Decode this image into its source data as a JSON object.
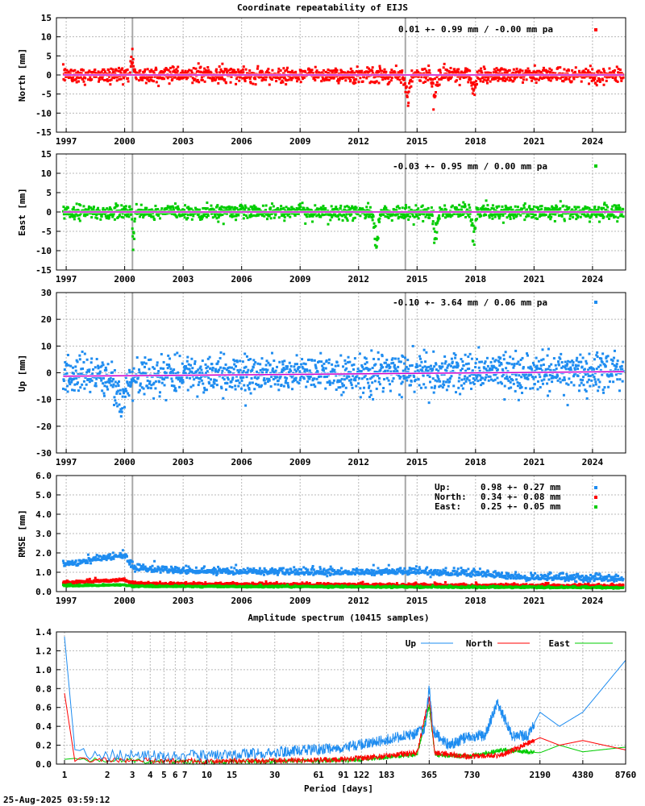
{
  "footer_timestamp": "25-Aug-2025 03:59:12",
  "chart_data": [
    {
      "id": "north",
      "type": "scatter",
      "title": "Coordinate repeatability of EIJS",
      "ylabel": "North [mm]",
      "ylim": [
        -15,
        15
      ],
      "yticks": [
        -15,
        -10,
        -5,
        0,
        5,
        10,
        15
      ],
      "ytick_labels": [
        "-15",
        "-10",
        "-5",
        "0",
        "5",
        "10",
        "15"
      ],
      "xlim": [
        1996.5,
        2025.7
      ],
      "xticks": [
        1997,
        2000,
        2003,
        2006,
        2009,
        2012,
        2015,
        2018,
        2021,
        2024
      ],
      "xtick_labels": [
        "1997",
        "2000",
        "2003",
        "2006",
        "2009",
        "2012",
        "2015",
        "2018",
        "2021",
        "2024"
      ],
      "vlines": [
        2000.4,
        2014.4
      ],
      "color": "#ff0000",
      "trend_color": "#cc00cc",
      "annotation": "0.01 +- 0.99 mm / -0.00 mm pa",
      "noise_sd": 1.0,
      "trend": [
        0.0,
        0.0
      ],
      "events": [
        [
          2000.4,
          5.0,
          0.1
        ],
        [
          2014.5,
          -5.0,
          0.15
        ],
        [
          2015.9,
          -5.5,
          0.15
        ],
        [
          2017.9,
          -4.5,
          0.12
        ]
      ]
    },
    {
      "id": "east",
      "type": "scatter",
      "ylabel": "East [mm]",
      "ylim": [
        -15,
        15
      ],
      "yticks": [
        -15,
        -10,
        -5,
        0,
        5,
        10,
        15
      ],
      "ytick_labels": [
        "-15",
        "-10",
        "-5",
        "0",
        "5",
        "10",
        "15"
      ],
      "xlim": [
        1996.5,
        2025.7
      ],
      "xticks": [
        1997,
        2000,
        2003,
        2006,
        2009,
        2012,
        2015,
        2018,
        2021,
        2024
      ],
      "xtick_labels": [
        "1997",
        "2000",
        "2003",
        "2006",
        "2009",
        "2012",
        "2015",
        "2018",
        "2021",
        "2024"
      ],
      "vlines": [
        2000.4,
        2014.4
      ],
      "color": "#00cc00",
      "trend_color": "#cc00cc",
      "annotation": "-0.03 +- 0.95 mm /  0.00 mm pa",
      "noise_sd": 0.9,
      "trend": [
        0.0,
        0.0
      ],
      "events": [
        [
          2000.45,
          -9.0,
          0.05
        ],
        [
          2012.9,
          -6.5,
          0.15
        ],
        [
          2015.95,
          -6.5,
          0.12
        ],
        [
          2017.9,
          -6.0,
          0.1
        ]
      ]
    },
    {
      "id": "up",
      "type": "scatter",
      "ylabel": "Up [mm]",
      "ylim": [
        -30,
        30
      ],
      "yticks": [
        -30,
        -20,
        -10,
        0,
        10,
        20,
        30
      ],
      "ytick_labels": [
        "-30",
        "-20",
        "-10",
        "0",
        "10",
        "20",
        "30"
      ],
      "xlim": [
        1996.5,
        2025.7
      ],
      "xticks": [
        1997,
        2000,
        2003,
        2006,
        2009,
        2012,
        2015,
        2018,
        2021,
        2024
      ],
      "xtick_labels": [
        "1997",
        "2000",
        "2003",
        "2006",
        "2009",
        "2012",
        "2015",
        "2018",
        "2021",
        "2024"
      ],
      "vlines": [
        2000.4,
        2014.4
      ],
      "color": "#1e8cf0",
      "trend_color": "#cc00cc",
      "annotation": "-0.10 +- 3.64 mm /  0.06 mm pa",
      "noise_sd": 3.6,
      "trend": [
        -1.3,
        0.06
      ],
      "events": [
        [
          1999.8,
          -8.0,
          0.4
        ]
      ]
    },
    {
      "id": "rmse",
      "type": "scatter",
      "ylabel": "RMSE [mm]",
      "ylim": [
        0,
        6
      ],
      "yticks": [
        0,
        1,
        2,
        3,
        4,
        5,
        6
      ],
      "ytick_labels": [
        "0.0",
        "1.0",
        "2.0",
        "3.0",
        "4.0",
        "5.0",
        "6.0"
      ],
      "xlim": [
        1996.5,
        2025.7
      ],
      "xticks": [
        1997,
        2000,
        2003,
        2006,
        2009,
        2012,
        2015,
        2018,
        2021,
        2024
      ],
      "xtick_labels": [
        "1997",
        "2000",
        "2003",
        "2006",
        "2009",
        "2012",
        "2015",
        "2018",
        "2021",
        "2024"
      ],
      "vlines": [
        2000.4,
        2014.4
      ],
      "legend": [
        {
          "name": "Up:",
          "text": "0.98 +- 0.27 mm",
          "color": "#1e8cf0"
        },
        {
          "name": "North:",
          "text": "0.34 +- 0.08 mm",
          "color": "#ff0000"
        },
        {
          "name": "East:",
          "text": "0.25 +- 0.05 mm",
          "color": "#00cc00"
        }
      ],
      "series": [
        {
          "name": "Up",
          "color": "#1e8cf0",
          "levels": [
            [
              1996.8,
              1.4
            ],
            [
              2000.0,
              1.9
            ],
            [
              2000.5,
              1.2
            ],
            [
              2004.0,
              1.05
            ],
            [
              2010.0,
              1.0
            ],
            [
              2014.0,
              1.0
            ],
            [
              2018.0,
              0.95
            ],
            [
              2020.0,
              0.75
            ],
            [
              2025.6,
              0.65
            ]
          ],
          "sd": 0.12
        },
        {
          "name": "North",
          "color": "#ff0000",
          "levels": [
            [
              1996.8,
              0.45
            ],
            [
              2000.0,
              0.6
            ],
            [
              2000.5,
              0.4
            ],
            [
              2010.0,
              0.35
            ],
            [
              2020.0,
              0.3
            ],
            [
              2025.6,
              0.28
            ]
          ],
          "sd": 0.05
        },
        {
          "name": "East",
          "color": "#00cc00",
          "levels": [
            [
              1996.8,
              0.3
            ],
            [
              2000.0,
              0.35
            ],
            [
              2000.5,
              0.27
            ],
            [
              2010.0,
              0.25
            ],
            [
              2020.0,
              0.22
            ],
            [
              2025.6,
              0.2
            ]
          ],
          "sd": 0.03
        }
      ]
    },
    {
      "id": "spectrum",
      "type": "line",
      "title": "Amplitude spectrum (10415 samples)",
      "xlabel": "Period [days]",
      "xscale": "log",
      "xlim": [
        1,
        8760
      ],
      "ylim": [
        0,
        1.4
      ],
      "yticks": [
        0,
        0.2,
        0.4,
        0.6,
        0.8,
        1.0,
        1.2,
        1.4
      ],
      "ytick_labels": [
        "0.0",
        "0.2",
        "0.4",
        "0.6",
        "0.8",
        "1.0",
        "1.2",
        "1.4"
      ],
      "xticks": [
        1,
        2,
        3,
        4,
        5,
        6,
        7,
        10,
        15,
        30,
        61,
        91,
        122,
        183,
        365,
        730,
        2190,
        4380,
        8760
      ],
      "xtick_labels": [
        "1",
        "2",
        "3",
        "4",
        "5",
        "6",
        "7",
        "10",
        "15",
        "30",
        "61",
        "91",
        "122",
        "183",
        "365",
        "730",
        "2190",
        "4380",
        "8760"
      ],
      "legend_position": "top-right",
      "series": [
        {
          "name": "Up",
          "color": "#1e8cf0",
          "points": [
            [
              1,
              1.35
            ],
            [
              1.02,
              0.2
            ],
            [
              1.1,
              0.12
            ],
            [
              2,
              0.09
            ],
            [
              10,
              0.09
            ],
            [
              30,
              0.12
            ],
            [
              100,
              0.18
            ],
            [
              250,
              0.3
            ],
            [
              340,
              0.35
            ],
            [
              365,
              0.8
            ],
            [
              390,
              0.35
            ],
            [
              500,
              0.2
            ],
            [
              700,
              0.3
            ],
            [
              900,
              0.3
            ],
            [
              1100,
              0.65
            ],
            [
              1400,
              0.3
            ],
            [
              1800,
              0.3
            ],
            [
              2190,
              0.55
            ],
            [
              3000,
              0.4
            ],
            [
              4380,
              0.55
            ],
            [
              8760,
              1.1
            ]
          ],
          "noise": 0.06
        },
        {
          "name": "North",
          "color": "#ff0000",
          "points": [
            [
              1,
              0.75
            ],
            [
              1.05,
              0.05
            ],
            [
              10,
              0.03
            ],
            [
              100,
              0.05
            ],
            [
              300,
              0.12
            ],
            [
              365,
              0.7
            ],
            [
              400,
              0.12
            ],
            [
              700,
              0.08
            ],
            [
              1200,
              0.1
            ],
            [
              2190,
              0.28
            ],
            [
              3000,
              0.2
            ],
            [
              4380,
              0.25
            ],
            [
              8760,
              0.15
            ]
          ],
          "noise": 0.03
        },
        {
          "name": "East",
          "color": "#00cc00",
          "points": [
            [
              1,
              0.05
            ],
            [
              10,
              0.02
            ],
            [
              100,
              0.04
            ],
            [
              300,
              0.1
            ],
            [
              365,
              0.62
            ],
            [
              400,
              0.1
            ],
            [
              700,
              0.08
            ],
            [
              1200,
              0.15
            ],
            [
              2190,
              0.12
            ],
            [
              3000,
              0.2
            ],
            [
              4380,
              0.13
            ],
            [
              8760,
              0.18
            ]
          ],
          "noise": 0.025
        }
      ]
    }
  ]
}
